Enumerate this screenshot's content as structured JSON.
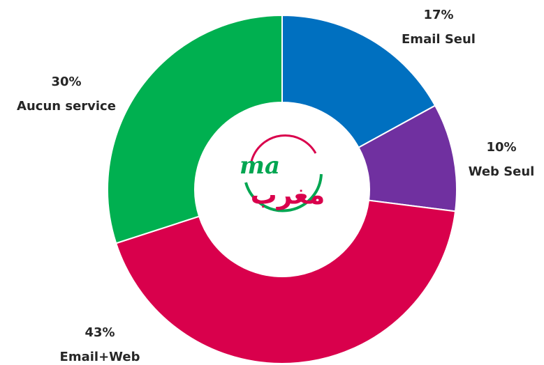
{
  "chart_data": {
    "type": "donut",
    "categories": [
      "Email Seul",
      "Web Seul",
      "Email+Web",
      "Aucun service"
    ],
    "values": [
      17,
      10,
      43,
      30
    ],
    "value_labels": [
      "17%",
      "10%",
      "43%",
      "30%"
    ],
    "colors": [
      "#0070c0",
      "#7030a0",
      "#d9004c",
      "#00b050"
    ]
  },
  "logo": {
    "latin": "ma",
    "arabic": "مغرب"
  }
}
